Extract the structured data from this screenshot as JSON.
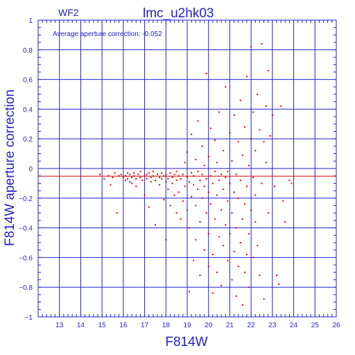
{
  "chart_data": {
    "type": "scatter",
    "chip_label": "WF2",
    "title": "lmc_u2hk03",
    "annotation": "Average aperture correction: -0.052",
    "xlabel": "F814W",
    "ylabel": "F814W aperture correction",
    "xlim": [
      12,
      26
    ],
    "ylim": [
      -1,
      1
    ],
    "xticks": [
      13,
      14,
      15,
      16,
      17,
      18,
      19,
      20,
      21,
      22,
      23,
      24,
      25,
      26
    ],
    "yticks": [
      1,
      0.8,
      0.6,
      0.4,
      0.2,
      0,
      -0.2,
      -0.4,
      -0.6,
      -0.8,
      -1
    ],
    "ytick_labels": [
      "1",
      "0.8",
      "0.6",
      "0.4",
      "0.2",
      "0",
      "−0.2",
      "−0.4",
      "−0.6",
      "−0.8",
      "−1"
    ],
    "grid": true,
    "average_line": -0.052,
    "series": [
      {
        "color": "#dd0000",
        "points": [
          [
            14.9,
            -0.04
          ],
          [
            15.1,
            -0.07
          ],
          [
            15.3,
            -0.05
          ],
          [
            15.4,
            -0.11
          ],
          [
            15.5,
            -0.06
          ],
          [
            15.6,
            -0.03
          ],
          [
            15.7,
            -0.3
          ],
          [
            15.8,
            -0.05
          ],
          [
            15.9,
            -0.04
          ],
          [
            16.0,
            -0.06
          ],
          [
            16.1,
            -0.08
          ],
          [
            16.1,
            -0.05
          ],
          [
            16.2,
            -0.03
          ],
          [
            16.2,
            -0.07
          ],
          [
            16.3,
            -0.09
          ],
          [
            16.3,
            -0.04
          ],
          [
            16.4,
            -0.06
          ],
          [
            16.4,
            -0.1
          ],
          [
            16.5,
            -0.05
          ],
          [
            16.5,
            -0.03
          ],
          [
            16.6,
            -0.07
          ],
          [
            16.6,
            -0.12
          ],
          [
            16.7,
            -0.04
          ],
          [
            16.8,
            -0.06
          ],
          [
            16.8,
            -0.02
          ],
          [
            16.9,
            -0.08
          ],
          [
            17.0,
            -0.05
          ],
          [
            17.0,
            -0.18
          ],
          [
            17.1,
            -0.04
          ],
          [
            17.1,
            -0.07
          ],
          [
            17.2,
            -0.26
          ],
          [
            17.2,
            -0.03
          ],
          [
            17.3,
            -0.06
          ],
          [
            17.3,
            -0.09
          ],
          [
            17.4,
            -0.05
          ],
          [
            17.4,
            -0.02
          ],
          [
            17.5,
            -0.08
          ],
          [
            17.5,
            -0.38
          ],
          [
            17.6,
            -0.04
          ],
          [
            17.7,
            -0.06
          ],
          [
            17.7,
            -0.11
          ],
          [
            17.8,
            -0.03
          ],
          [
            17.8,
            -0.07
          ],
          [
            17.9,
            -0.21
          ],
          [
            17.9,
            -0.05
          ],
          [
            18.0,
            -0.48
          ],
          [
            18.0,
            -0.09
          ],
          [
            18.0,
            -0.04
          ],
          [
            18.1,
            -0.14
          ],
          [
            18.1,
            -0.07
          ],
          [
            18.2,
            -0.25
          ],
          [
            18.2,
            -0.03
          ],
          [
            18.3,
            -0.1
          ],
          [
            18.3,
            -0.06
          ],
          [
            18.4,
            -0.18
          ],
          [
            18.4,
            -0.04
          ],
          [
            18.5,
            -0.3
          ],
          [
            18.5,
            -0.08
          ],
          [
            18.5,
            -0.02
          ],
          [
            18.6,
            -0.16
          ],
          [
            18.6,
            -0.05
          ],
          [
            18.7,
            -0.34
          ],
          [
            18.7,
            -0.07
          ],
          [
            18.8,
            -0.22
          ],
          [
            18.8,
            -0.04
          ],
          [
            18.9,
            -0.12
          ],
          [
            18.9,
            0.04
          ],
          [
            19.0,
            -0.28
          ],
          [
            19.0,
            -0.06
          ],
          [
            19.0,
            0.11
          ],
          [
            19.1,
            -0.4
          ],
          [
            19.1,
            -0.09
          ],
          [
            19.1,
            -0.83
          ],
          [
            19.2,
            -0.19
          ],
          [
            19.2,
            -0.03
          ],
          [
            19.2,
            0.23
          ],
          [
            19.3,
            -0.62
          ],
          [
            19.3,
            -0.11
          ],
          [
            19.3,
            -0.05
          ],
          [
            19.4,
            -0.25
          ],
          [
            19.4,
            0.06
          ],
          [
            19.4,
            -0.48
          ],
          [
            19.5,
            -0.14
          ],
          [
            19.5,
            -0.02
          ],
          [
            19.5,
            0.32
          ],
          [
            19.6,
            -0.36
          ],
          [
            19.6,
            -0.08
          ],
          [
            19.6,
            -0.72
          ],
          [
            19.7,
            -0.2
          ],
          [
            19.7,
            0.15
          ],
          [
            19.7,
            -0.04
          ],
          [
            19.8,
            -0.55
          ],
          [
            19.8,
            -0.12
          ],
          [
            19.8,
            0.02
          ],
          [
            19.9,
            -0.3
          ],
          [
            19.9,
            -0.07
          ],
          [
            19.9,
            0.64
          ],
          [
            20.0,
            -0.44
          ],
          [
            20.0,
            -0.16
          ],
          [
            20.0,
            0.08
          ],
          [
            20.0,
            -0.66
          ],
          [
            20.1,
            -0.24
          ],
          [
            20.1,
            -0.05
          ],
          [
            20.1,
            0.27
          ],
          [
            20.2,
            -0.58
          ],
          [
            20.2,
            -0.1
          ],
          [
            20.2,
            -0.84
          ],
          [
            20.3,
            -0.34
          ],
          [
            20.3,
            -0.02
          ],
          [
            20.3,
            0.19
          ],
          [
            20.4,
            -0.7
          ],
          [
            20.4,
            -0.18
          ],
          [
            20.4,
            0.04
          ],
          [
            20.5,
            -0.46
          ],
          [
            20.5,
            -0.08
          ],
          [
            20.5,
            0.38
          ],
          [
            20.6,
            -0.28
          ],
          [
            20.6,
            -0.04
          ],
          [
            20.6,
            -0.79
          ],
          [
            20.7,
            -0.52
          ],
          [
            20.7,
            -0.14
          ],
          [
            20.7,
            0.12
          ],
          [
            20.8,
            -0.38
          ],
          [
            20.8,
            -0.06
          ],
          [
            20.8,
            0.55
          ],
          [
            20.9,
            -0.62
          ],
          [
            20.9,
            -0.22
          ],
          [
            20.9,
            -0.02
          ],
          [
            21.0,
            -0.44
          ],
          [
            21.0,
            -0.1
          ],
          [
            21.0,
            0.24
          ],
          [
            21.1,
            -0.75
          ],
          [
            21.1,
            -0.3
          ],
          [
            21.1,
            0.05
          ],
          [
            21.2,
            -0.56
          ],
          [
            21.2,
            -0.16
          ],
          [
            21.2,
            0.36
          ],
          [
            21.3,
            -0.86
          ],
          [
            21.3,
            -0.4
          ],
          [
            21.3,
            -0.04
          ],
          [
            21.4,
            -0.66
          ],
          [
            21.4,
            -0.2
          ],
          [
            21.4,
            0.18
          ],
          [
            21.5,
            -0.5
          ],
          [
            21.5,
            -0.08
          ],
          [
            21.5,
            0.46
          ],
          [
            21.6,
            -0.92
          ],
          [
            21.6,
            -0.34
          ],
          [
            21.6,
            0.09
          ],
          [
            21.7,
            -0.7
          ],
          [
            21.7,
            -0.24
          ],
          [
            21.7,
            0.28
          ],
          [
            21.8,
            -0.58
          ],
          [
            21.8,
            -0.12
          ],
          [
            21.8,
            0.62
          ],
          [
            21.9,
            -0.44
          ],
          [
            21.9,
            0.02
          ],
          [
            21.9,
            -0.8
          ],
          [
            22.0,
            -0.28
          ],
          [
            22.0,
            0.2
          ],
          [
            22.0,
            0.82
          ],
          [
            22.1,
            -0.6
          ],
          [
            22.1,
            -0.06
          ],
          [
            22.1,
            0.38
          ],
          [
            22.2,
            -0.36
          ],
          [
            22.2,
            0.12
          ],
          [
            22.2,
            -0.18
          ],
          [
            22.3,
            0.5
          ],
          [
            22.3,
            -0.52
          ],
          [
            22.4,
            0.26
          ],
          [
            22.4,
            -0.72
          ],
          [
            22.5,
            0.84
          ],
          [
            22.5,
            -0.1
          ],
          [
            22.6,
            0.18
          ],
          [
            22.6,
            -0.88
          ],
          [
            22.7,
            0.42
          ],
          [
            22.7,
            0.04
          ],
          [
            22.8,
            0.66
          ],
          [
            22.8,
            -0.3
          ],
          [
            22.9,
            0.22
          ],
          [
            23.0,
            0.36
          ],
          [
            23.1,
            -0.12
          ],
          [
            23.2,
            -0.72
          ],
          [
            23.3,
            -0.78
          ],
          [
            23.4,
            0.42
          ],
          [
            23.5,
            -0.22
          ],
          [
            23.6,
            -0.36
          ],
          [
            23.8,
            -0.08
          ],
          [
            23.9,
            -0.1
          ]
        ]
      }
    ]
  }
}
